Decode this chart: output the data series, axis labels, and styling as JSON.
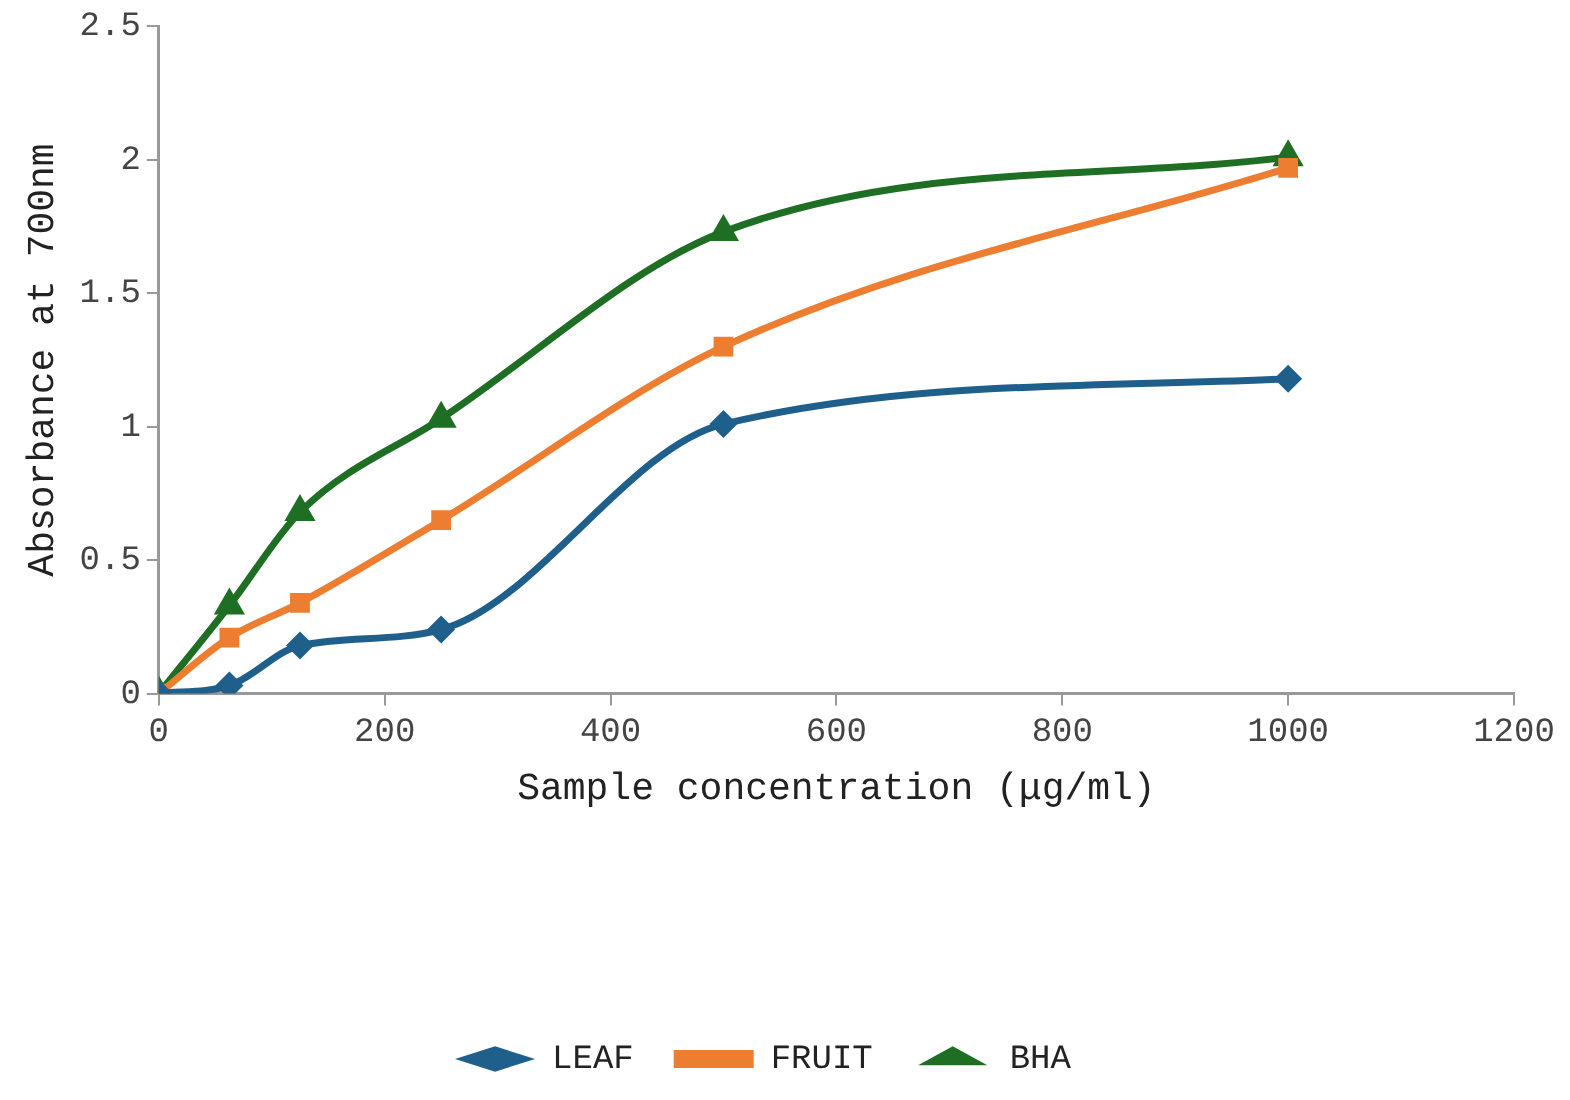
{
  "chart_data": {
    "type": "line",
    "xlabel": "Sample concentration (μg/ml)",
    "ylabel": "Absorbance at 700nm",
    "x": [
      0,
      62.5,
      125,
      250,
      500,
      1000
    ],
    "series": [
      {
        "name": "LEAF",
        "color": "#1f5f8b",
        "marker": "diamond",
        "values": [
          0,
          0.03,
          0.18,
          0.24,
          1.01,
          1.18
        ]
      },
      {
        "name": "FRUIT",
        "color": "#ed7d31",
        "marker": "square",
        "values": [
          0,
          0.21,
          0.34,
          0.65,
          1.3,
          1.97
        ]
      },
      {
        "name": "BHA",
        "color": "#1e6e23",
        "marker": "triangle",
        "values": [
          0,
          0.33,
          0.68,
          1.03,
          1.73,
          2.01
        ]
      }
    ],
    "xlim": [
      0,
      1200
    ],
    "xticks": [
      0,
      200,
      400,
      600,
      800,
      1000,
      1200
    ],
    "ylim": [
      0,
      2.5
    ],
    "yticks": [
      0,
      {
        "value": 0.5,
        "label": "0.5"
      },
      1,
      {
        "value": 1.5,
        "label": "1.5"
      },
      2,
      {
        "value": 2.5,
        "label": "2.5"
      }
    ],
    "grid": false,
    "legend": "bottom",
    "line_style": "solid"
  }
}
